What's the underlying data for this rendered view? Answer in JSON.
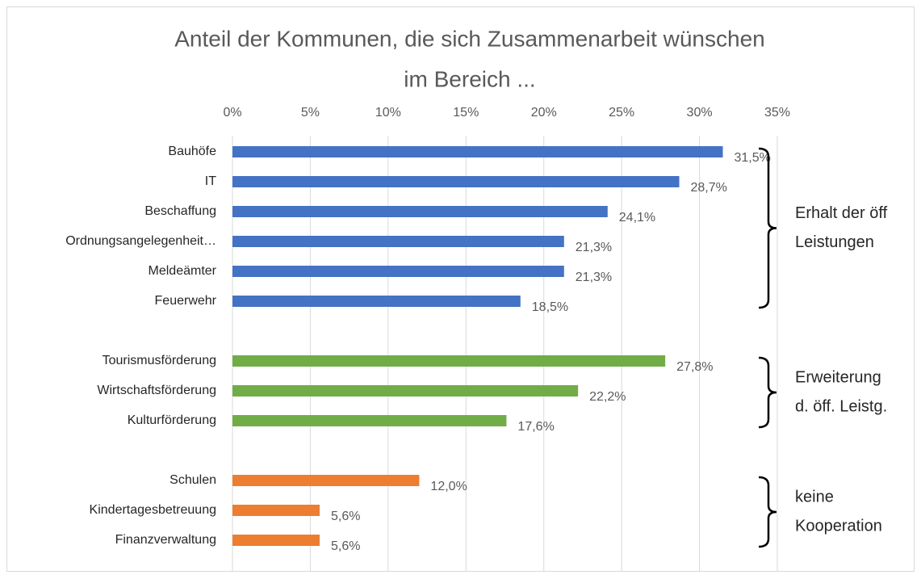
{
  "chart_data": {
    "type": "bar",
    "orientation": "horizontal",
    "title": [
      "Anteil der Kommunen, die sich Zusammenarbeit wünschen",
      "im Bereich ..."
    ],
    "xlim": [
      0,
      35
    ],
    "xticks": [
      {
        "value": 0,
        "label": "0%"
      },
      {
        "value": 5,
        "label": "5%"
      },
      {
        "value": 10,
        "label": "10%"
      },
      {
        "value": 15,
        "label": "15%"
      },
      {
        "value": 20,
        "label": "20%"
      },
      {
        "value": 25,
        "label": "25%"
      },
      {
        "value": 30,
        "label": "30%"
      },
      {
        "value": 35,
        "label": "35%"
      }
    ],
    "grid": true,
    "groups": [
      {
        "label": [
          "Erhalt der öff",
          "Leistungen"
        ],
        "color": "#4472c4",
        "categories": [
          "Bauhöfe",
          "IT",
          "Beschaffung",
          "Ordnungsangelegenheit…",
          "Meldeämter",
          "Feuerwehr"
        ],
        "values": [
          31.5,
          28.7,
          24.1,
          21.3,
          21.3,
          18.5
        ],
        "value_labels": [
          "31,5%",
          "28,7%",
          "24,1%",
          "21,3%",
          "21,3%",
          "18,5%"
        ]
      },
      {
        "label": [
          "Erweiterung",
          "d. öff. Leistg."
        ],
        "color": "#70ad47",
        "categories": [
          "Tourismusförderung",
          "Wirtschaftsförderung",
          "Kulturförderung"
        ],
        "values": [
          27.8,
          22.2,
          17.6
        ],
        "value_labels": [
          "27,8%",
          "22,2%",
          "17,6%"
        ]
      },
      {
        "label": [
          "keine",
          "Kooperation"
        ],
        "color": "#ed7d31",
        "categories": [
          "Schulen",
          "Kindertagesbetreuung",
          "Finanzverwaltung"
        ],
        "values": [
          12.0,
          5.6,
          5.6
        ],
        "value_labels": [
          "12,0%",
          "5,6%",
          "5,6%"
        ]
      }
    ]
  }
}
